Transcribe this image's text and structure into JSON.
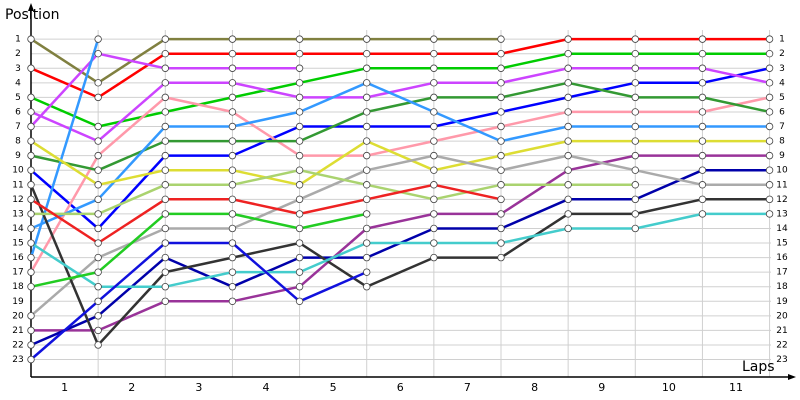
{
  "chart_data": {
    "type": "line",
    "y_label": "Position",
    "x_label": "Laps",
    "x": [
      0,
      1,
      2,
      3,
      4,
      5,
      6,
      7,
      8,
      9,
      10,
      11
    ],
    "xlim": [
      0,
      11.2
    ],
    "ylim": [
      24.2,
      -1
    ],
    "xticks": [
      {
        "value": 0.5,
        "label": "1"
      },
      {
        "value": 1.5,
        "label": "2"
      },
      {
        "value": 2.5,
        "label": "3"
      },
      {
        "value": 3.5,
        "label": "4"
      },
      {
        "value": 4.5,
        "label": "5"
      },
      {
        "value": 5.5,
        "label": "6"
      },
      {
        "value": 6.5,
        "label": "7"
      },
      {
        "value": 7.5,
        "label": "8"
      },
      {
        "value": 8.5,
        "label": "9"
      },
      {
        "value": 9.5,
        "label": "10"
      },
      {
        "value": 10.5,
        "label": "11"
      }
    ],
    "yticks": [
      1,
      2,
      3,
      4,
      5,
      6,
      7,
      8,
      9,
      10,
      11,
      12,
      13,
      14,
      15,
      16,
      17,
      18,
      19,
      20,
      21,
      22,
      23
    ],
    "grid": true,
    "series": [
      {
        "color": "#808040",
        "values": [
          1,
          4,
          1,
          1,
          1,
          1,
          1,
          1,
          null,
          null,
          null,
          null
        ]
      },
      {
        "color": "#ff0000",
        "values": [
          3,
          5,
          2,
          2,
          2,
          2,
          2,
          2,
          1,
          1,
          1,
          1
        ]
      },
      {
        "color": "#00cc00",
        "values": [
          5,
          7,
          6,
          5,
          4,
          3,
          3,
          3,
          2,
          2,
          2,
          2
        ]
      },
      {
        "color": "#0000ff",
        "values": [
          10,
          14,
          9,
          9,
          7,
          7,
          7,
          6,
          5,
          4,
          4,
          3
        ]
      },
      {
        "color": "#cc44ff",
        "values": [
          6,
          8,
          4,
          4,
          5,
          5,
          4,
          4,
          3,
          3,
          3,
          4
        ]
      },
      {
        "color": "#cc44ff",
        "values": [
          7,
          2,
          3,
          3,
          3,
          null,
          null,
          null,
          null,
          null,
          null,
          null
        ]
      },
      {
        "color": "#ff99aa",
        "values": [
          17,
          9,
          5,
          6,
          9,
          9,
          8,
          7,
          6,
          6,
          6,
          5
        ]
      },
      {
        "color": "#339933",
        "values": [
          9,
          10,
          8,
          8,
          8,
          6,
          5,
          5,
          4,
          5,
          5,
          6
        ]
      },
      {
        "color": "#3399ff",
        "values": [
          14,
          12,
          7,
          7,
          6,
          4,
          6,
          8,
          7,
          7,
          7,
          7
        ]
      },
      {
        "color": "#3399ff",
        "values": [
          16,
          1,
          null,
          null,
          null,
          null,
          null,
          null,
          null,
          null,
          null,
          null
        ]
      },
      {
        "color": "#dddd33",
        "values": [
          8,
          11,
          10,
          10,
          11,
          8,
          10,
          9,
          8,
          8,
          8,
          8
        ]
      },
      {
        "color": "#993399",
        "values": [
          21,
          21,
          19,
          19,
          18,
          14,
          13,
          13,
          10,
          9,
          9,
          9
        ]
      },
      {
        "color": "#0000aa",
        "values": [
          22,
          20,
          16,
          18,
          16,
          16,
          14,
          14,
          12,
          12,
          10,
          10
        ]
      },
      {
        "color": "#aaaaaa",
        "values": [
          20,
          16,
          14,
          14,
          12,
          10,
          9,
          10,
          9,
          10,
          11,
          11
        ]
      },
      {
        "color": "#333333",
        "values": [
          11,
          22,
          17,
          16,
          15,
          18,
          16,
          16,
          13,
          13,
          12,
          12
        ]
      },
      {
        "color": "#44cccc",
        "values": [
          15,
          18,
          18,
          17,
          17,
          15,
          15,
          15,
          14,
          14,
          13,
          13
        ]
      },
      {
        "color": "#aad36f",
        "values": [
          13,
          13,
          11,
          11,
          10,
          11,
          12,
          11,
          11,
          11,
          null,
          null
        ]
      },
      {
        "color": "#ee2222",
        "values": [
          12,
          15,
          12,
          12,
          13,
          12,
          11,
          12,
          null,
          null,
          null,
          null
        ]
      },
      {
        "color": "#22cc22",
        "values": [
          18,
          17,
          13,
          13,
          14,
          13,
          null,
          null,
          null,
          null,
          null,
          null
        ]
      },
      {
        "color": "#1111dd",
        "values": [
          23,
          19,
          15,
          15,
          19,
          17,
          null,
          null,
          null,
          null,
          null,
          null
        ]
      }
    ]
  }
}
